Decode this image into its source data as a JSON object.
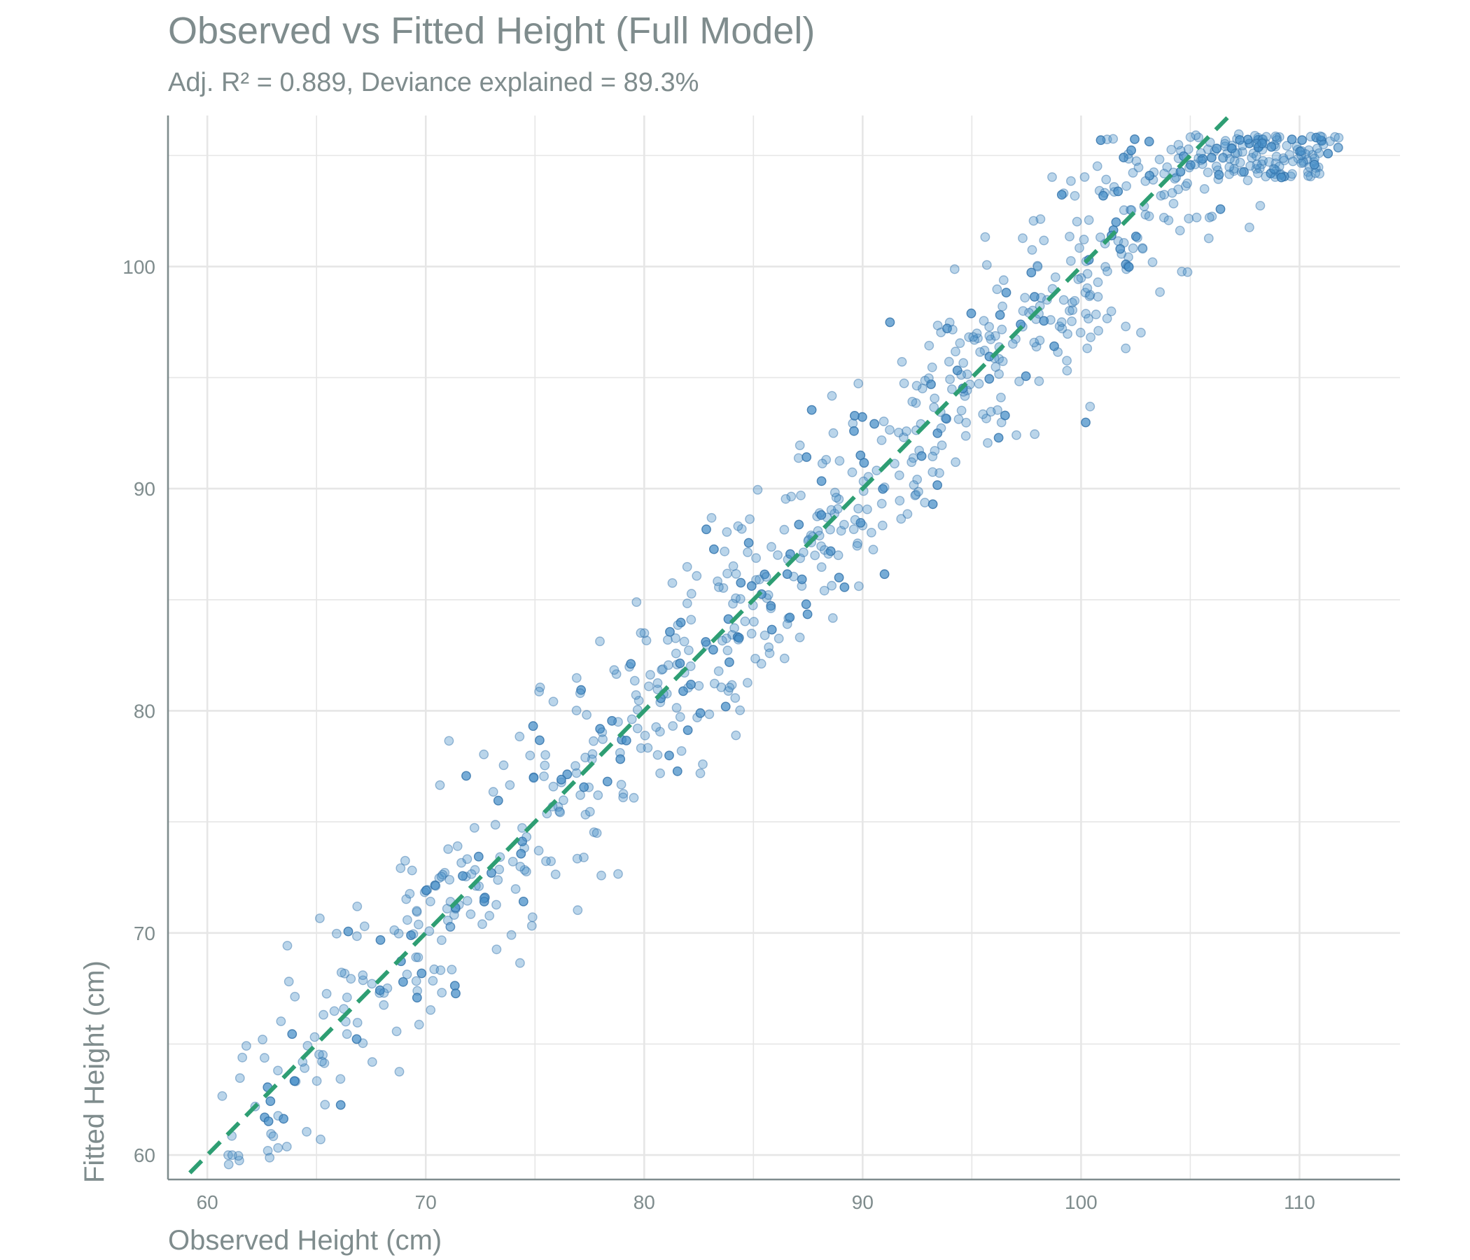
{
  "colors": {
    "point": "#4a90c8",
    "point_stroke": "#2e6fa8",
    "reference_line": "#2e9e73",
    "grid": "#e6e6e6",
    "axis": "#7f8c8d",
    "text": "#7f8c8d"
  },
  "chart_data": {
    "type": "scatter",
    "title": "Observed vs Fitted Height (Full Model)",
    "subtitle": "Adj. R² = 0.889, Deviance explained = 89.3%",
    "xlabel": "Observed Height (cm)",
    "ylabel": "Fitted Height (cm)",
    "xlim": [
      58.2,
      114.6
    ],
    "ylim": [
      58.9,
      106.8
    ],
    "x_ticks": [
      60,
      70,
      80,
      90,
      100,
      110
    ],
    "y_ticks": [
      60,
      70,
      80,
      90,
      100
    ],
    "grid": true,
    "legend": "none",
    "reference_line": {
      "type": "identity",
      "style": "dashed",
      "slope": 1,
      "intercept": 0
    },
    "points": {
      "n": 900,
      "distribution": "approximately along identity line",
      "x_range": [
        60.6,
        112.0
      ],
      "residual_sd": 2.5
    }
  }
}
